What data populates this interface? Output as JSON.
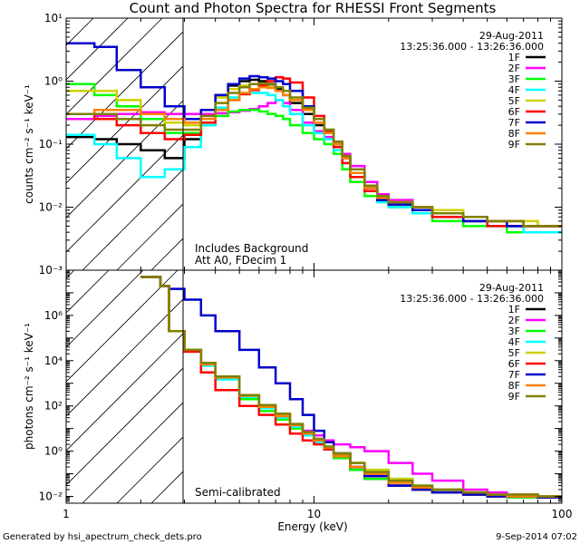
{
  "title": "Count and Photon Spectra for RHESSI Front Segments",
  "date": "29-Aug-2011",
  "time_range": "13:25:36.000 - 13:26:36.000",
  "footer_left": "Generated by hsi_apectrum_check_dets.pro",
  "footer_right": "9-Sep-2014 07:02",
  "chart_data": [
    {
      "type": "line",
      "panel": "top",
      "xlabel": "Energy (keV)",
      "ylabel": "counts cm⁻² s⁻¹ keV⁻¹",
      "xscale": "log",
      "yscale": "log",
      "xlim": [
        1,
        100
      ],
      "ylim": [
        0.001,
        10
      ],
      "x_ticks": [
        "1",
        "10",
        "100"
      ],
      "y_ticks": [
        "10⁻³",
        "10⁻²",
        "10⁻¹",
        "10⁰",
        "10¹"
      ],
      "annotations": [
        "Includes Background",
        "Att A0, FDecim 1"
      ],
      "x": [
        1.0,
        1.3,
        1.6,
        2.0,
        2.5,
        3.0,
        3.5,
        4.0,
        4.5,
        5.0,
        5.5,
        6.0,
        6.5,
        7.0,
        7.5,
        8.0,
        9.0,
        10.0,
        11.0,
        12.0,
        13.0,
        14.0,
        16.0,
        18.0,
        20.0,
        25.0,
        30.0,
        40.0,
        50.0,
        60.0,
        70.0,
        80.0,
        100.0
      ],
      "series": [
        {
          "name": "1F",
          "color": "#000000",
          "values": [
            0.13,
            0.12,
            0.1,
            0.08,
            0.06,
            0.12,
            0.3,
            0.6,
            0.85,
            1.0,
            1.05,
            1.0,
            0.9,
            0.75,
            0.6,
            0.45,
            0.3,
            0.2,
            0.15,
            0.1,
            0.06,
            0.035,
            0.02,
            0.014,
            0.012,
            0.01,
            0.008,
            0.006,
            0.006,
            0.005,
            0.005,
            0.005,
            0.005
          ]
        },
        {
          "name": "2F",
          "color": "#ff00ff",
          "values": [
            0.25,
            0.28,
            0.3,
            0.32,
            0.3,
            0.3,
            0.3,
            0.31,
            0.32,
            0.34,
            0.36,
            0.4,
            0.45,
            0.5,
            0.45,
            0.35,
            0.22,
            0.16,
            0.13,
            0.1,
            0.07,
            0.045,
            0.025,
            0.016,
            0.013,
            0.01,
            0.008,
            0.007,
            0.006,
            0.006,
            0.005,
            0.005,
            0.005
          ]
        },
        {
          "name": "3F",
          "color": "#00ff00",
          "values": [
            0.9,
            0.6,
            0.4,
            0.25,
            0.15,
            0.15,
            0.2,
            0.28,
            0.33,
            0.35,
            0.35,
            0.33,
            0.3,
            0.28,
            0.25,
            0.2,
            0.15,
            0.12,
            0.1,
            0.07,
            0.04,
            0.025,
            0.015,
            0.012,
            0.01,
            0.008,
            0.006,
            0.005,
            0.005,
            0.004,
            0.004,
            0.004,
            0.004
          ]
        },
        {
          "name": "4F",
          "color": "#00ffff",
          "values": [
            0.14,
            0.1,
            0.06,
            0.03,
            0.04,
            0.09,
            0.2,
            0.38,
            0.55,
            0.62,
            0.65,
            0.65,
            0.6,
            0.5,
            0.4,
            0.3,
            0.2,
            0.15,
            0.12,
            0.08,
            0.05,
            0.03,
            0.018,
            0.012,
            0.01,
            0.008,
            0.007,
            0.006,
            0.005,
            0.005,
            0.004,
            0.004,
            0.004
          ]
        },
        {
          "name": "5F",
          "color": "#d0d000",
          "values": [
            0.7,
            0.7,
            0.5,
            0.3,
            0.22,
            0.2,
            0.35,
            0.55,
            0.75,
            0.85,
            0.9,
            0.85,
            0.8,
            0.7,
            0.6,
            0.5,
            0.35,
            0.25,
            0.17,
            0.1,
            0.06,
            0.035,
            0.02,
            0.014,
            0.012,
            0.01,
            0.009,
            0.007,
            0.006,
            0.006,
            0.006,
            0.005,
            0.005
          ]
        },
        {
          "name": "6F",
          "color": "#ff0000",
          "values": [
            0.3,
            0.25,
            0.2,
            0.15,
            0.12,
            0.14,
            0.22,
            0.35,
            0.5,
            0.62,
            0.72,
            0.85,
            1.0,
            1.15,
            1.1,
            0.95,
            0.55,
            0.28,
            0.16,
            0.09,
            0.05,
            0.03,
            0.018,
            0.013,
            0.011,
            0.009,
            0.007,
            0.006,
            0.005,
            0.005,
            0.005,
            0.005,
            0.005
          ]
        },
        {
          "name": "7F",
          "color": "#0000cc",
          "values": [
            4.0,
            3.5,
            1.5,
            0.8,
            0.4,
            0.25,
            0.35,
            0.6,
            0.9,
            1.1,
            1.2,
            1.15,
            1.1,
            1.0,
            0.9,
            0.7,
            0.4,
            0.22,
            0.15,
            0.1,
            0.06,
            0.035,
            0.02,
            0.013,
            0.011,
            0.009,
            0.008,
            0.006,
            0.006,
            0.005,
            0.005,
            0.005,
            0.005
          ]
        },
        {
          "name": "8F",
          "color": "#ff8000",
          "values": [
            0.3,
            0.35,
            0.35,
            0.3,
            0.25,
            0.22,
            0.25,
            0.35,
            0.5,
            0.65,
            0.75,
            0.8,
            0.78,
            0.7,
            0.6,
            0.5,
            0.35,
            0.22,
            0.15,
            0.1,
            0.06,
            0.035,
            0.02,
            0.014,
            0.012,
            0.01,
            0.008,
            0.007,
            0.006,
            0.006,
            0.005,
            0.005,
            0.005
          ]
        },
        {
          "name": "9F",
          "color": "#808000",
          "values": [
            0.3,
            0.3,
            0.25,
            0.2,
            0.17,
            0.17,
            0.28,
            0.45,
            0.65,
            0.8,
            0.9,
            0.92,
            0.88,
            0.8,
            0.7,
            0.55,
            0.38,
            0.25,
            0.17,
            0.11,
            0.065,
            0.04,
            0.022,
            0.015,
            0.012,
            0.01,
            0.008,
            0.007,
            0.006,
            0.006,
            0.005,
            0.005,
            0.005
          ]
        }
      ]
    },
    {
      "type": "line",
      "panel": "bottom",
      "xlabel": "Energy (keV)",
      "ylabel": "photons cm⁻² s⁻¹ keV⁻¹",
      "xscale": "log",
      "yscale": "log",
      "xlim": [
        1,
        100
      ],
      "ylim": [
        0.005,
        100000000
      ],
      "x_ticks": [
        "1",
        "10",
        "100"
      ],
      "y_ticks": [
        "10⁻²",
        "10⁰",
        "10²",
        "10⁴",
        "10⁶"
      ],
      "annotations": [
        "Semi-calibrated"
      ],
      "x": [
        2.0,
        2.4,
        2.6,
        3.0,
        3.5,
        4.0,
        5.0,
        6.0,
        7.0,
        8.0,
        9.0,
        10.0,
        11.0,
        12.0,
        14.0,
        16.0,
        20.0,
        25.0,
        30.0,
        40.0,
        50.0,
        60.0,
        80.0,
        100.0
      ],
      "series": [
        {
          "name": "1F",
          "color": "#000000",
          "values": [
            50000000,
            20000000,
            200000,
            30000,
            8000,
            2000,
            300,
            100,
            40,
            15,
            6,
            3,
            1.2,
            0.5,
            0.15,
            0.06,
            0.03,
            0.02,
            0.015,
            0.012,
            0.01,
            0.01,
            0.009,
            0.009
          ]
        },
        {
          "name": "2F",
          "color": "#ff00ff",
          "values": [
            50000000,
            20000000,
            200000,
            30000,
            8000,
            2000,
            300,
            100,
            40,
            15,
            8,
            5,
            3,
            2,
            1.5,
            1.0,
            0.3,
            0.1,
            0.05,
            0.02,
            0.015,
            0.012,
            0.01,
            0.01
          ]
        },
        {
          "name": "3F",
          "color": "#00ff00",
          "values": [
            50000000,
            20000000,
            200000,
            30000,
            6000,
            1500,
            200,
            60,
            25,
            10,
            5,
            2.5,
            1.2,
            0.5,
            0.15,
            0.06,
            0.03,
            0.02,
            0.015,
            0.012,
            0.01,
            0.009,
            0.009,
            0.008
          ]
        },
        {
          "name": "4F",
          "color": "#00ffff",
          "values": [
            50000000,
            20000000,
            200000,
            30000,
            6000,
            1500,
            250,
            80,
            30,
            12,
            5,
            2.5,
            1.2,
            0.6,
            0.3,
            0.15,
            0.06,
            0.03,
            0.02,
            0.015,
            0.012,
            0.01,
            0.01,
            0.009
          ]
        },
        {
          "name": "5F",
          "color": "#d0d000",
          "values": [
            50000000,
            20000000,
            200000,
            30000,
            8000,
            2000,
            300,
            100,
            40,
            15,
            6,
            3,
            1.5,
            0.7,
            0.3,
            0.15,
            0.06,
            0.03,
            0.02,
            0.015,
            0.012,
            0.012,
            0.01,
            0.01
          ]
        },
        {
          "name": "6F",
          "color": "#ff0000",
          "values": [
            50000000,
            20000000,
            200000,
            25000,
            3000,
            500,
            100,
            40,
            15,
            6,
            3,
            2,
            1.2,
            0.6,
            0.2,
            0.08,
            0.03,
            0.02,
            0.015,
            0.012,
            0.01,
            0.01,
            0.009,
            0.009
          ]
        },
        {
          "name": "7F",
          "color": "#0000cc",
          "values": [
            50000000,
            20000000,
            15000000,
            5000000,
            1000000,
            200000,
            30000,
            5000,
            1000,
            200,
            40,
            8,
            2.5,
            0.8,
            0.2,
            0.08,
            0.03,
            0.02,
            0.015,
            0.012,
            0.01,
            0.01,
            0.009,
            0.009
          ]
        },
        {
          "name": "8F",
          "color": "#ff8000",
          "values": [
            50000000,
            20000000,
            200000,
            30000,
            7000,
            1800,
            280,
            90,
            35,
            14,
            6,
            3,
            1.4,
            0.6,
            0.2,
            0.1,
            0.04,
            0.025,
            0.02,
            0.015,
            0.012,
            0.01,
            0.01,
            0.009
          ]
        },
        {
          "name": "9F",
          "color": "#808000",
          "values": [
            50000000,
            20000000,
            200000,
            30000,
            8000,
            2000,
            300,
            110,
            45,
            16,
            7,
            3.5,
            1.6,
            0.8,
            0.3,
            0.12,
            0.05,
            0.03,
            0.02,
            0.015,
            0.012,
            0.012,
            0.01,
            0.01
          ]
        }
      ]
    }
  ]
}
